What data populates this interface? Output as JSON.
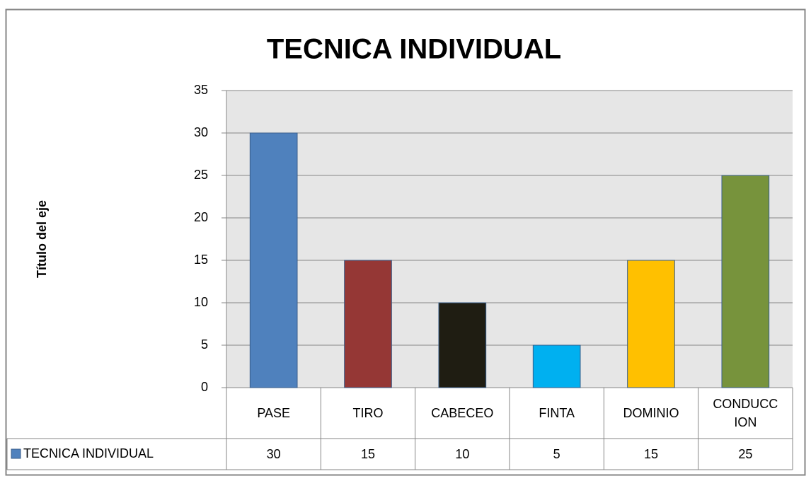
{
  "chart_data": {
    "type": "bar",
    "title": "TECNICA INDIVIDUAL",
    "y_label": "Título del eje",
    "categories": [
      "PASE",
      "TIRO",
      "CABECEO",
      "FINTA",
      "DOMINIO",
      "CONDUCCION"
    ],
    "series": [
      {
        "name": "TECNICA INDIVIDUAL",
        "color": "#4f81bd",
        "colors": [
          "#4f81bd",
          "#953735",
          "#1f1d12",
          "#00b0f0",
          "#ffc000",
          "#77933c"
        ],
        "values": [
          30,
          15,
          10,
          5,
          15,
          25
        ]
      }
    ],
    "ylim": [
      0,
      35
    ],
    "yticks": [
      0,
      5,
      10,
      15,
      20,
      25,
      30,
      35
    ],
    "grid": true,
    "data_table": true
  }
}
